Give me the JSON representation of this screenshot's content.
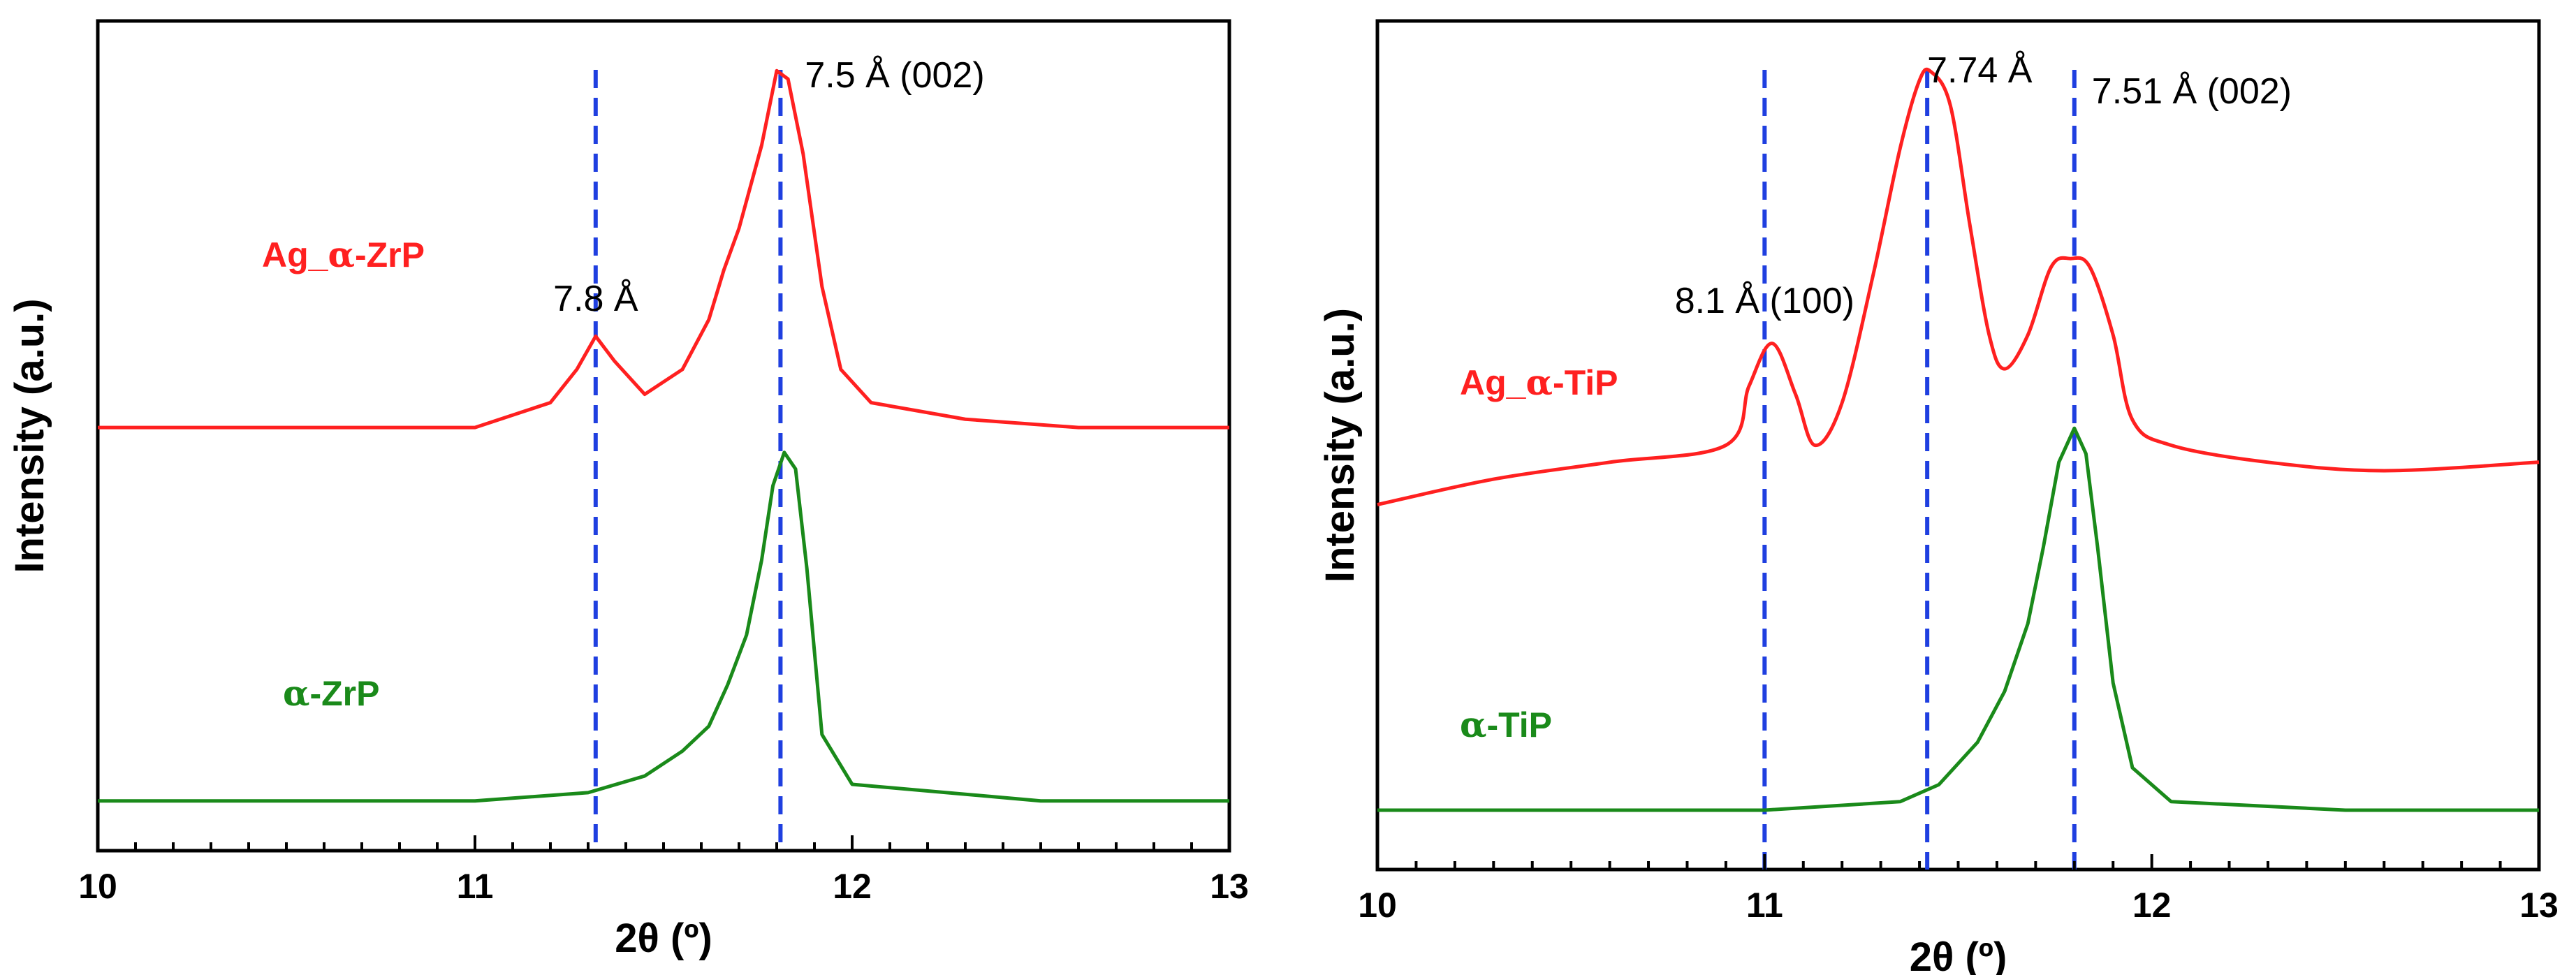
{
  "colors": {
    "ag_series": "#ff2020",
    "pristine_series": "#1a8a1a",
    "reference_line": "#1f3fe0",
    "axis": "#000000"
  },
  "chart_data": [
    {
      "type": "line",
      "title": "",
      "xlabel": "2θ (º)",
      "ylabel": "Intensity (a.u.)",
      "xlim": [
        10,
        13
      ],
      "ylim": [
        0,
        100
      ],
      "x_ticks": [
        10,
        11,
        12,
        13
      ],
      "x_tick_labels": [
        "10",
        "11",
        "12",
        "13"
      ],
      "y_ticks_shown": false,
      "grid": false,
      "series": [
        {
          "name": "Ag_α-ZrP",
          "color_key": "ag_series",
          "x": [
            10.0,
            10.5,
            11.0,
            11.2,
            11.27,
            11.32,
            11.37,
            11.45,
            11.55,
            11.62,
            11.66,
            11.7,
            11.76,
            11.8,
            11.83,
            11.87,
            11.92,
            11.97,
            12.05,
            12.3,
            12.6,
            13.0
          ],
          "y": [
            51,
            51,
            51,
            54,
            58,
            62,
            59,
            55,
            58,
            64,
            70,
            75,
            85,
            94,
            93,
            84,
            68,
            58,
            54,
            52,
            51,
            51
          ]
        },
        {
          "name": "α-ZrP",
          "color_key": "pristine_series",
          "x": [
            10.0,
            10.5,
            11.0,
            11.3,
            11.45,
            11.55,
            11.62,
            11.67,
            11.72,
            11.76,
            11.79,
            11.82,
            11.85,
            11.88,
            11.92,
            12.0,
            12.5,
            13.0
          ],
          "y": [
            6,
            6,
            6,
            7,
            9,
            12,
            15,
            20,
            26,
            35,
            44,
            48,
            46,
            34,
            14,
            8,
            6,
            6
          ]
        }
      ],
      "reference_lines": [
        {
          "x": 11.32,
          "label": "7.8 Å"
        },
        {
          "x": 11.81,
          "label": "7.5 Å (002)"
        }
      ],
      "series_labels": [
        {
          "text": "Ag_",
          "greek": "α",
          "rest": "-ZrP",
          "series_index": 0
        },
        {
          "text": "",
          "greek": "α",
          "rest": "-ZrP",
          "series_index": 1
        }
      ]
    },
    {
      "type": "line",
      "title": "",
      "xlabel": "2θ (º)",
      "ylabel": "Intensity (a.u.)",
      "xlim": [
        10,
        13
      ],
      "ylim": [
        0,
        100
      ],
      "x_ticks": [
        10,
        11,
        12,
        13
      ],
      "x_tick_labels": [
        "10",
        "11",
        "12",
        "13"
      ],
      "y_ticks_shown": false,
      "grid": false,
      "series": [
        {
          "name": "Ag_α-TiP",
          "color_key": "ag_series",
          "x": [
            10.0,
            10.3,
            10.6,
            10.9,
            10.96,
            11.02,
            11.08,
            11.13,
            11.2,
            11.28,
            11.35,
            11.4,
            11.43,
            11.48,
            11.53,
            11.58,
            11.62,
            11.68,
            11.74,
            11.79,
            11.84,
            11.9,
            11.95,
            12.05,
            12.3,
            12.6,
            13.0
          ],
          "y": [
            43,
            46,
            48,
            50,
            57,
            62,
            56,
            50,
            55,
            70,
            85,
            93,
            94,
            90,
            76,
            63,
            59,
            63,
            71,
            72,
            71,
            63,
            53,
            50,
            48,
            47,
            48
          ],
          "smooth": true
        },
        {
          "name": "α-TiP",
          "color_key": "pristine_series",
          "x": [
            10.0,
            10.5,
            11.0,
            11.35,
            11.45,
            11.55,
            11.62,
            11.68,
            11.72,
            11.76,
            11.8,
            11.83,
            11.86,
            11.9,
            11.95,
            12.05,
            12.5,
            13.0
          ],
          "y": [
            7,
            7,
            7,
            8,
            10,
            15,
            21,
            29,
            38,
            48,
            52,
            49,
            38,
            22,
            12,
            8,
            7,
            7
          ]
        }
      ],
      "reference_lines": [
        {
          "x": 11.0,
          "label": "8.1 Å (100)"
        },
        {
          "x": 11.42,
          "label": "7.74 Å"
        },
        {
          "x": 11.8,
          "label": "7.51 Å (002)"
        }
      ],
      "series_labels": [
        {
          "text": "Ag_",
          "greek": "α",
          "rest": "-TiP",
          "series_index": 0
        },
        {
          "text": "",
          "greek": "α",
          "rest": "-TiP",
          "series_index": 1
        }
      ]
    }
  ]
}
